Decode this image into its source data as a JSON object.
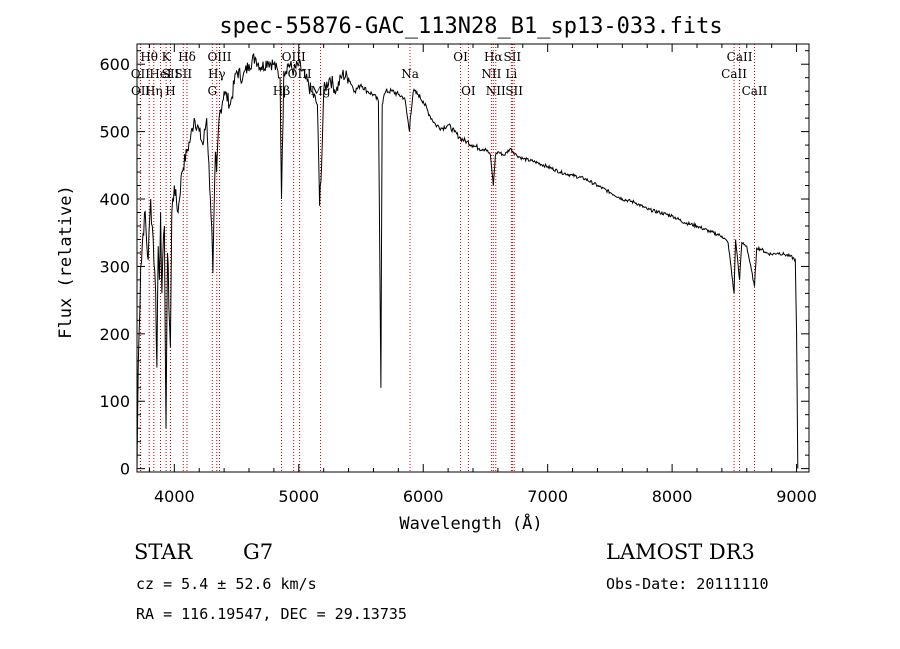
{
  "chart_data": {
    "type": "line",
    "title": "spec-55876-GAC_113N28_B1_sp13-033.fits",
    "xlabel": "Wavelength (Å)",
    "ylabel": "Flux (relative)",
    "xlim": [
      3700,
      9100
    ],
    "ylim": [
      -5,
      630
    ],
    "x_ticks": [
      4000,
      5000,
      6000,
      7000,
      8000,
      9000
    ],
    "y_ticks": [
      0,
      100,
      200,
      300,
      400,
      500,
      600
    ],
    "series": [
      {
        "name": "flux",
        "x": [
          3700,
          3710,
          3730,
          3760,
          3790,
          3810,
          3830,
          3850,
          3860,
          3870,
          3880,
          3890,
          3900,
          3920,
          3933,
          3945,
          3968,
          3980,
          4000,
          4030,
          4060,
          4100,
          4130,
          4160,
          4200,
          4230,
          4260,
          4290,
          4300,
          4310,
          4330,
          4340,
          4360,
          4400,
          4450,
          4500,
          4550,
          4600,
          4650,
          4700,
          4750,
          4800,
          4850,
          4861,
          4880,
          4920,
          4960,
          5000,
          5050,
          5100,
          5150,
          5167,
          5172,
          5183,
          5200,
          5250,
          5300,
          5350,
          5400,
          5450,
          5500,
          5550,
          5600,
          5640,
          5660,
          5670,
          5680,
          5700,
          5750,
          5800,
          5850,
          5890,
          5896,
          5920,
          5960,
          6000,
          6050,
          6100,
          6150,
          6200,
          6250,
          6300,
          6350,
          6400,
          6450,
          6500,
          6540,
          6563,
          6580,
          6600,
          6650,
          6700,
          6750,
          6800,
          6900,
          7000,
          7100,
          7200,
          7300,
          7400,
          7500,
          7600,
          7700,
          7800,
          7900,
          8000,
          8100,
          8200,
          8300,
          8400,
          8450,
          8498,
          8510,
          8542,
          8560,
          8600,
          8662,
          8680,
          8720,
          8760,
          8800,
          8850,
          8900,
          8950,
          8990,
          9000,
          9010
        ],
        "y": [
          0,
          150,
          300,
          380,
          310,
          400,
          340,
          260,
          150,
          330,
          280,
          380,
          260,
          360,
          60,
          320,
          180,
          380,
          420,
          380,
          440,
          470,
          490,
          520,
          500,
          480,
          520,
          400,
          360,
          290,
          470,
          440,
          520,
          560,
          540,
          590,
          580,
          600,
          610,
          595,
          605,
          600,
          580,
          400,
          590,
          600,
          590,
          600,
          580,
          560,
          540,
          390,
          420,
          450,
          560,
          580,
          560,
          585,
          580,
          560,
          570,
          560,
          555,
          545,
          120,
          540,
          550,
          560,
          560,
          555,
          550,
          500,
          520,
          560,
          555,
          545,
          525,
          510,
          505,
          510,
          500,
          490,
          485,
          480,
          475,
          475,
          465,
          420,
          465,
          470,
          465,
          475,
          465,
          460,
          455,
          448,
          440,
          435,
          430,
          420,
          410,
          400,
          395,
          385,
          380,
          375,
          365,
          360,
          352,
          345,
          335,
          260,
          340,
          280,
          335,
          330,
          270,
          328,
          325,
          320,
          318,
          320,
          318,
          315,
          310,
          200,
          0
        ]
      }
    ],
    "lines": [
      {
        "name": "OII",
        "x": 3727,
        "row": 2
      },
      {
        "name": "OII",
        "x": 3729,
        "row": 3
      },
      {
        "name": "Hθ",
        "x": 3798,
        "row": 1
      },
      {
        "name": "Hη",
        "x": 3835,
        "row": 3
      },
      {
        "name": "HeI",
        "x": 3889,
        "row": 2
      },
      {
        "name": "K",
        "x": 3934,
        "row": 1
      },
      {
        "name": "SII",
        "x": 3969,
        "row": 2
      },
      {
        "name": "H",
        "x": 3969,
        "row": 3
      },
      {
        "name": "Hδ",
        "x": 4102,
        "row": 1
      },
      {
        "name": "SII",
        "x": 4072,
        "row": 2
      },
      {
        "name": "OIII",
        "x": 4363,
        "row": 1
      },
      {
        "name": "Hγ",
        "x": 4341,
        "row": 2
      },
      {
        "name": "G",
        "x": 4305,
        "row": 3
      },
      {
        "name": "OIII",
        "x": 4959,
        "row": 1
      },
      {
        "name": "Hβ",
        "x": 4861,
        "row": 3
      },
      {
        "name": "OIII",
        "x": 5007,
        "row": 2
      },
      {
        "name": "Mg",
        "x": 5175,
        "row": 3
      },
      {
        "name": "Na",
        "x": 5894,
        "row": 2
      },
      {
        "name": "OI",
        "x": 6300,
        "row": 1
      },
      {
        "name": "OI",
        "x": 6363,
        "row": 3
      },
      {
        "name": "Hα",
        "x": 6563,
        "row": 1
      },
      {
        "name": "NII",
        "x": 6548,
        "row": 2
      },
      {
        "name": "NII",
        "x": 6583,
        "row": 3
      },
      {
        "name": "SII",
        "x": 6716,
        "row": 1
      },
      {
        "name": "Li",
        "x": 6708,
        "row": 2
      },
      {
        "name": "SII",
        "x": 6731,
        "row": 3
      },
      {
        "name": "CaII",
        "x": 8542,
        "row": 1
      },
      {
        "name": "CaII",
        "x": 8498,
        "row": 2
      },
      {
        "name": "CaII",
        "x": 8662,
        "row": 3
      }
    ],
    "line_color": "#cc0000"
  },
  "info": {
    "object_class": "STAR",
    "subclass": "G7",
    "survey": "LAMOST DR3",
    "redshift": "cz = 5.4 ± 52.6 km/s",
    "obs_date": "Obs-Date: 20111110",
    "coords": "RA = 116.19547, DEC =  29.13735"
  }
}
